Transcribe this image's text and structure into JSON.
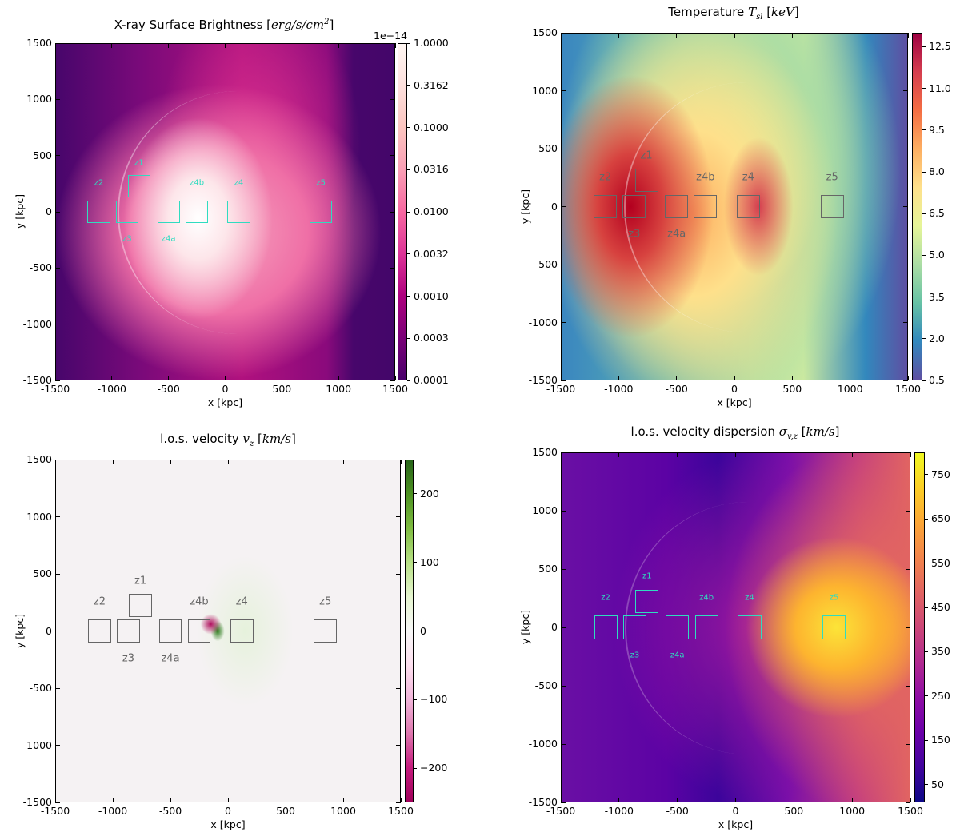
{
  "chart_data": [
    {
      "type": "heatmap",
      "title": "X-ray Surface Brightness",
      "title_unit": "erg/s/cm",
      "title_sup": "2",
      "xlabel": "x [kpc]",
      "ylabel": "y [kpc]",
      "xlim": [
        -1500,
        1500
      ],
      "ylim": [
        -1500,
        1500
      ],
      "xticks": [
        "-1500",
        "-1000",
        "-500",
        "0",
        "500",
        "1000",
        "1500"
      ],
      "yticks": [
        "-1500",
        "-1000",
        "-500",
        "0",
        "500",
        "1000",
        "1500"
      ],
      "colorbar": {
        "scale": "log",
        "offset_text": "1e−14",
        "ticks": [
          "0.0001",
          "0.0003",
          "0.0010",
          "0.0032",
          "0.0100",
          "0.0316",
          "0.1000",
          "0.3162",
          "1.0000"
        ],
        "colormap": "RdPu_r",
        "vmin": 0.0001,
        "vmax": 1.0
      },
      "box_color": "#2fdcc0",
      "label_size": "small"
    },
    {
      "type": "heatmap",
      "title": "Temperature",
      "title_sym": "T",
      "title_sub": "sl",
      "title_unit": "keV",
      "xlabel": "x [kpc]",
      "ylabel": "y [kpc]",
      "xlim": [
        -1500,
        1500
      ],
      "ylim": [
        -1500,
        1500
      ],
      "xticks": [
        "-1500",
        "-1000",
        "-500",
        "0",
        "500",
        "1000",
        "1500"
      ],
      "yticks": [
        "-1500",
        "-1000",
        "-500",
        "0",
        "500",
        "1000",
        "1500"
      ],
      "colorbar": {
        "scale": "linear",
        "ticks": [
          "0.5",
          "2.0",
          "3.5",
          "5.0",
          "6.5",
          "8.0",
          "9.5",
          "11.0",
          "12.5"
        ],
        "tick_values": [
          0.5,
          2,
          3.5,
          5,
          6.5,
          8,
          9.5,
          11,
          12.5
        ],
        "colormap": "Spectral_r",
        "vmin": 0.5,
        "vmax": 13.0
      },
      "box_color": "#666666",
      "label_size": "large"
    },
    {
      "type": "heatmap",
      "title": "l.o.s. velocity",
      "title_sym": "v",
      "title_sub": "z",
      "title_unit": "km/s",
      "xlabel": "x [kpc]",
      "ylabel": "y [kpc]",
      "xlim": [
        -1500,
        1500
      ],
      "ylim": [
        -1500,
        1500
      ],
      "xticks": [
        "-1500",
        "-1000",
        "-500",
        "0",
        "500",
        "1000",
        "1500"
      ],
      "yticks": [
        "-1500",
        "-1000",
        "-500",
        "0",
        "500",
        "1000",
        "1500"
      ],
      "colorbar": {
        "scale": "linear",
        "ticks": [
          "−200",
          "−100",
          "0",
          "100",
          "200"
        ],
        "tick_values": [
          -200,
          -100,
          0,
          100,
          200
        ],
        "colormap": "PiYG",
        "vmin": -250,
        "vmax": 250
      },
      "box_color": "#666666",
      "label_size": "large"
    },
    {
      "type": "heatmap",
      "title": "l.o.s. velocity dispersion",
      "title_sym": "σ",
      "title_sub": "v,z",
      "title_unit": "km/s",
      "xlabel": "x [kpc]",
      "ylabel": "y [kpc]",
      "xlim": [
        -1500,
        1500
      ],
      "ylim": [
        -1500,
        1500
      ],
      "xticks": [
        "-1500",
        "-1000",
        "-500",
        "0",
        "500",
        "1000",
        "1500"
      ],
      "yticks": [
        "-1500",
        "-1000",
        "-500",
        "0",
        "500",
        "1000",
        "1500"
      ],
      "colorbar": {
        "scale": "linear",
        "ticks": [
          "50",
          "150",
          "250",
          "350",
          "450",
          "550",
          "650",
          "750"
        ],
        "tick_values": [
          50,
          150,
          250,
          350,
          450,
          550,
          650,
          750
        ],
        "colormap": "plasma",
        "vmin": 10,
        "vmax": 800
      },
      "box_color": "#2fdcc0",
      "label_size": "small"
    }
  ],
  "regions": [
    {
      "name": "z1",
      "x": -760,
      "y": 225,
      "label_pos": "above"
    },
    {
      "name": "z2",
      "x": -1115,
      "y": 0,
      "label_pos": "above"
    },
    {
      "name": "z3",
      "x": -865,
      "y": 0,
      "label_pos": "below"
    },
    {
      "name": "z4a",
      "x": -500,
      "y": 0,
      "label_pos": "below"
    },
    {
      "name": "z4b",
      "x": -250,
      "y": 0,
      "label_pos": "above"
    },
    {
      "name": "z4",
      "x": 120,
      "y": 0,
      "label_pos": "above"
    },
    {
      "name": "z5",
      "x": 845,
      "y": 0,
      "label_pos": "above"
    }
  ],
  "region_size_kpc": 200
}
